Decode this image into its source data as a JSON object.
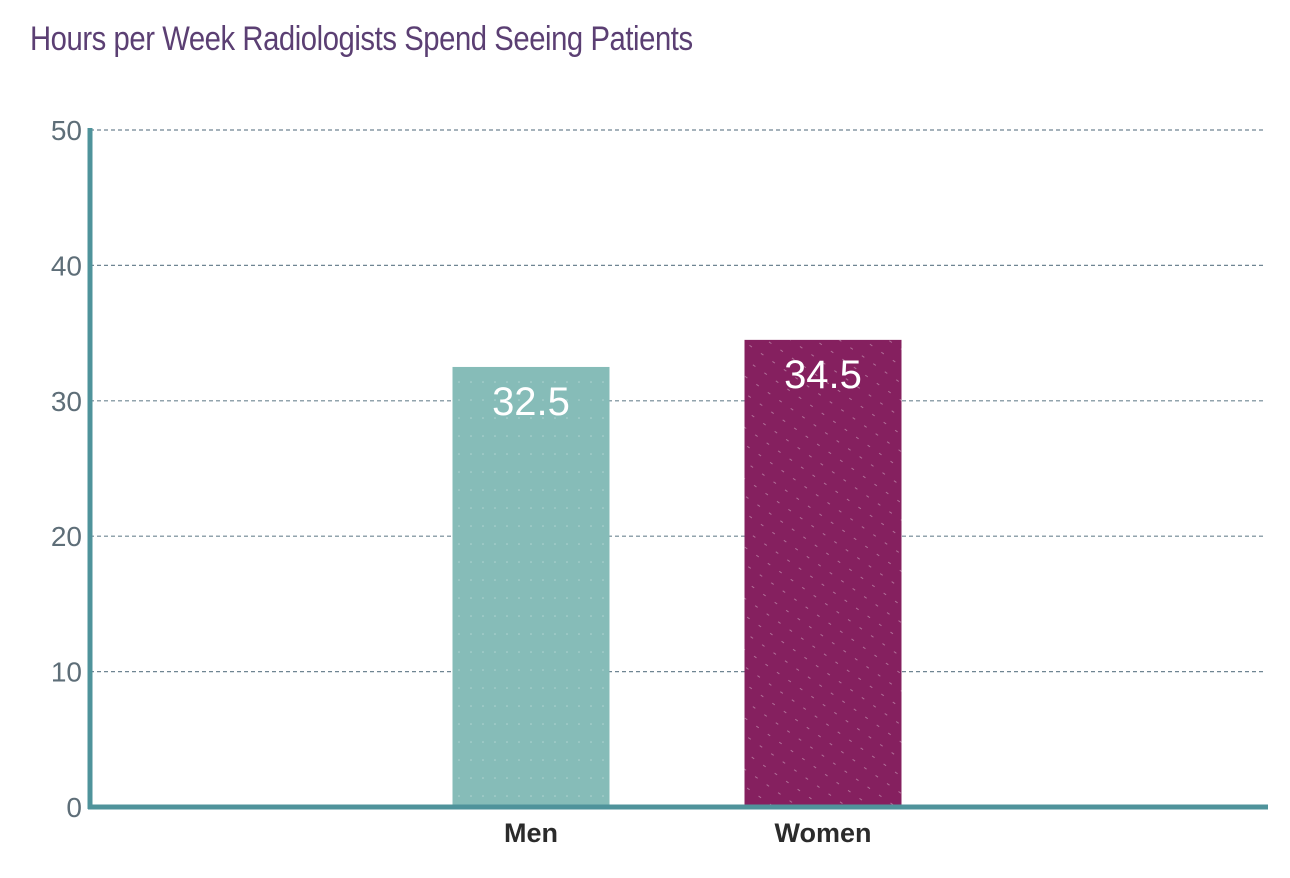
{
  "chart_data": {
    "type": "bar",
    "title": "Hours per Week Radiologists Spend Seeing Patients",
    "xlabel": "",
    "ylabel": "",
    "categories": [
      "Men",
      "Women"
    ],
    "values": [
      32.5,
      34.5
    ],
    "data_labels": [
      "32.5",
      "34.5"
    ],
    "ylim": [
      0,
      50
    ],
    "yticks": [
      0,
      10,
      20,
      30,
      40,
      50
    ],
    "grid": true,
    "colors": [
      "#86bcb8",
      "#85205f"
    ],
    "axis_color": "#4f939b"
  }
}
